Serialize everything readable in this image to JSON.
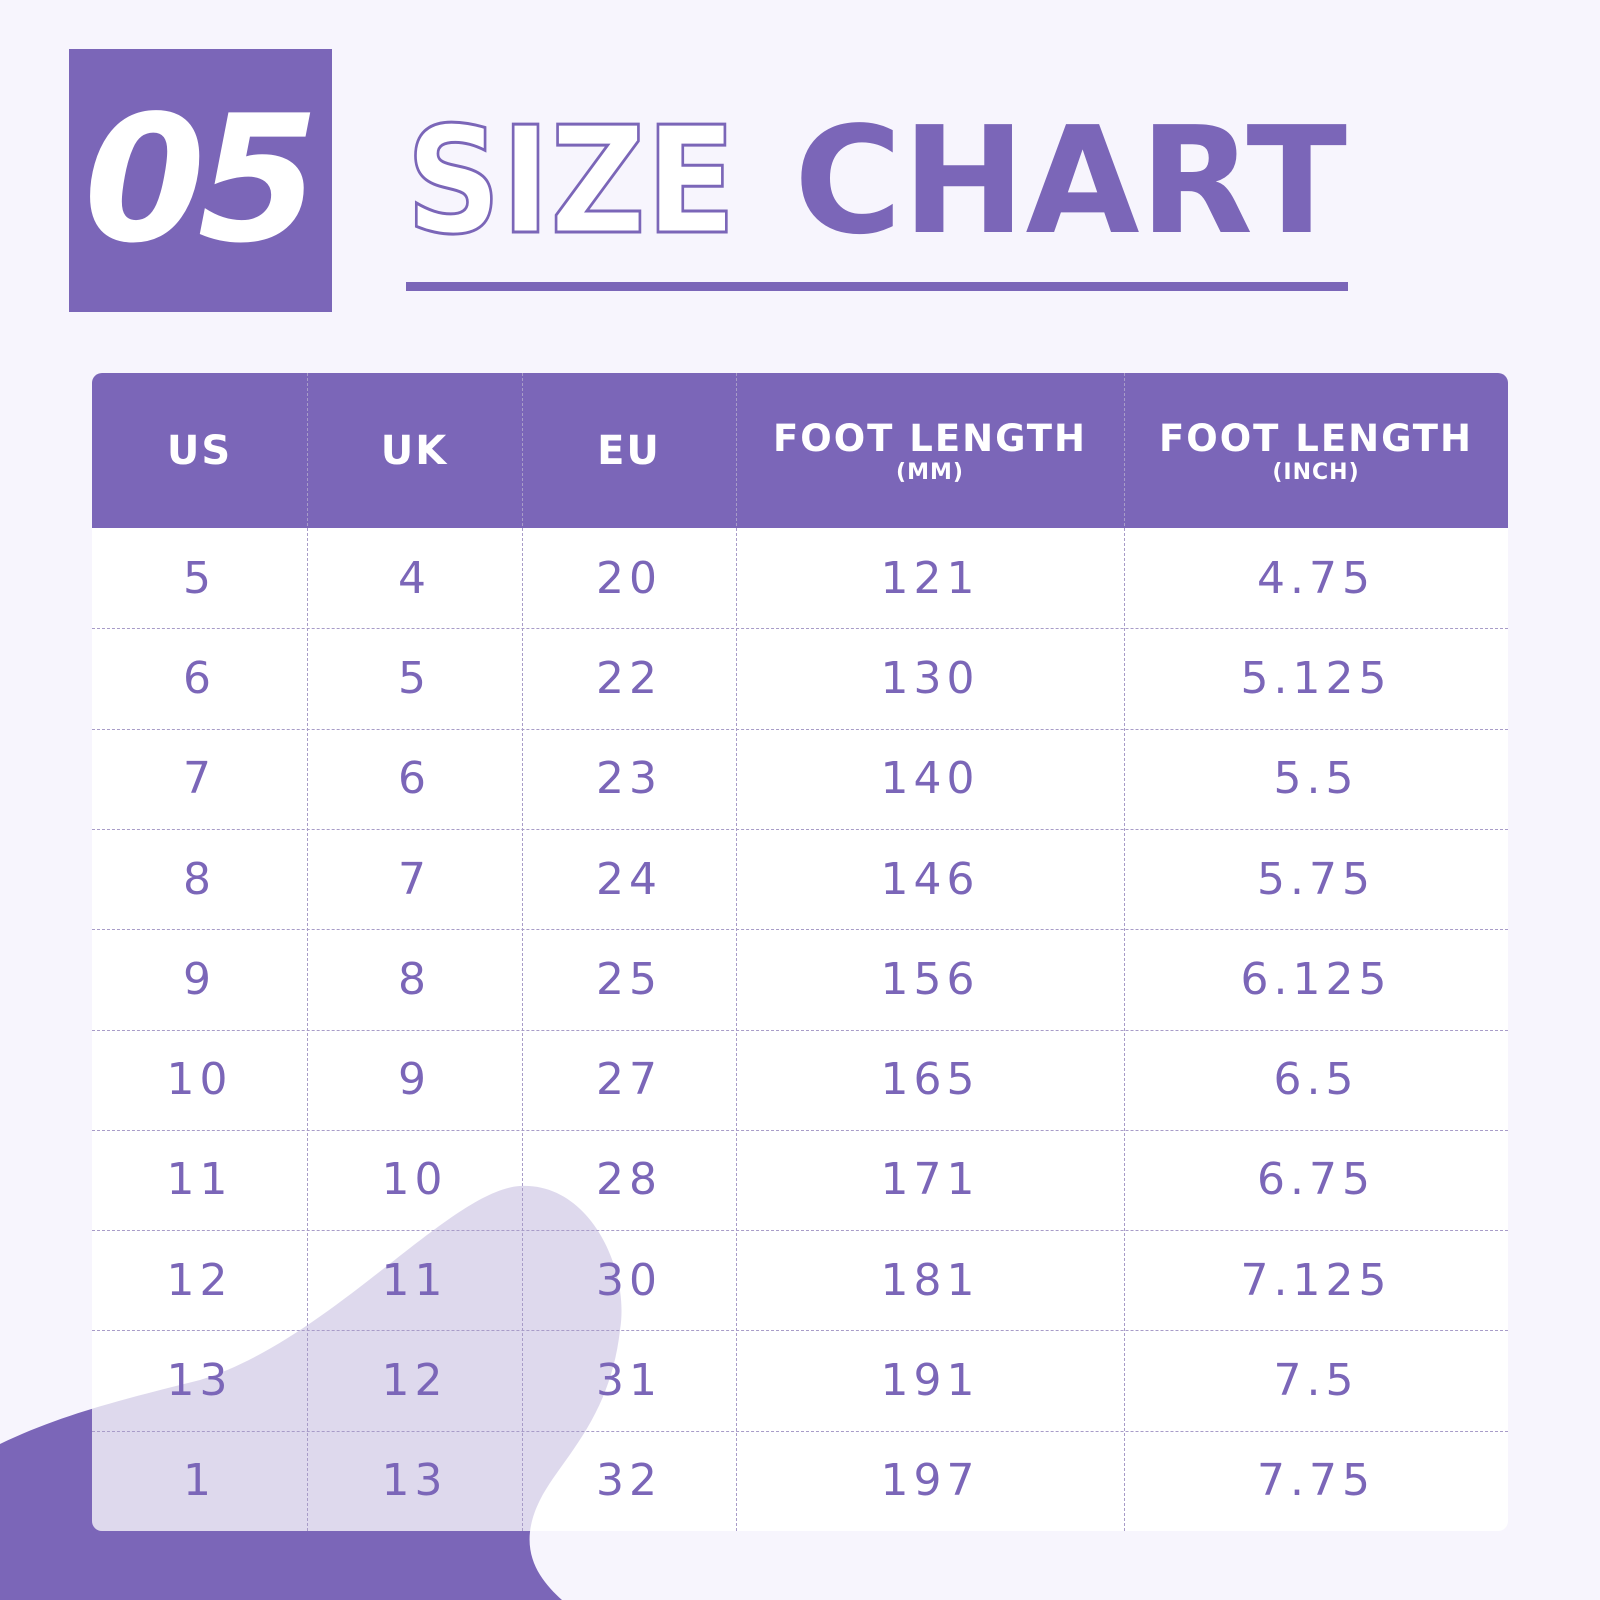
{
  "badge": "05",
  "title": {
    "outline": "SIZE",
    "bold": "CHART"
  },
  "table": {
    "columns": [
      {
        "label": "US"
      },
      {
        "label": "UK"
      },
      {
        "label": "EU"
      },
      {
        "label": "FOOT LENGTH",
        "unit": "(MM)"
      },
      {
        "label": "FOOT LENGTH",
        "unit": "(INCH)"
      }
    ],
    "rows": [
      [
        "5",
        "4",
        "20",
        "121",
        "4.75"
      ],
      [
        "6",
        "5",
        "22",
        "130",
        "5.125"
      ],
      [
        "7",
        "6",
        "23",
        "140",
        "5.5"
      ],
      [
        "8",
        "7",
        "24",
        "146",
        "5.75"
      ],
      [
        "9",
        "8",
        "25",
        "156",
        "6.125"
      ],
      [
        "10",
        "9",
        "27",
        "165",
        "6.5"
      ],
      [
        "11",
        "10",
        "28",
        "171",
        "6.75"
      ],
      [
        "12",
        "11",
        "30",
        "181",
        "7.125"
      ],
      [
        "13",
        "12",
        "31",
        "191",
        "7.5"
      ],
      [
        "1",
        "13",
        "32",
        "197",
        "7.75"
      ]
    ]
  }
}
